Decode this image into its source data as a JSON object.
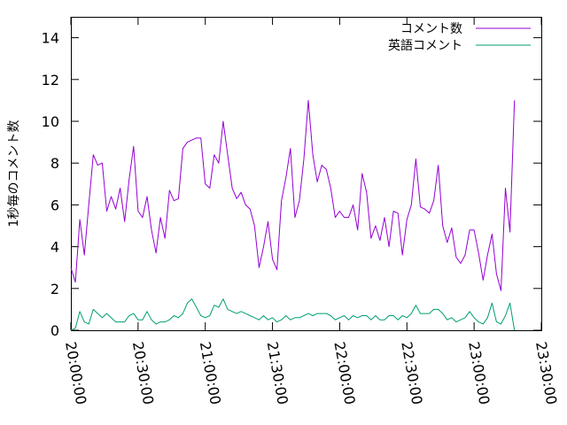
{
  "chart_data": {
    "type": "line",
    "title": "",
    "xlabel": "",
    "ylabel": "1秒毎のコメント数",
    "ylim": [
      0,
      15
    ],
    "yticks": [
      0,
      2,
      4,
      6,
      8,
      10,
      12,
      14
    ],
    "xlim": [
      "20:00:00",
      "23:30:00"
    ],
    "xticks": [
      "20:00:00",
      "20:30:00",
      "21:00:00",
      "21:30:00",
      "22:00:00",
      "22:30:00",
      "23:00:00",
      "23:30:00"
    ],
    "x_step_minutes": 2,
    "grid": false,
    "legend_position": "top-right",
    "series": [
      {
        "name": "コメント数",
        "color": "#9400d3",
        "values": [
          3.0,
          2.3,
          5.3,
          3.6,
          6.0,
          8.4,
          7.9,
          8.0,
          5.7,
          6.4,
          5.8,
          6.8,
          5.2,
          7.2,
          8.8,
          5.7,
          5.4,
          6.4,
          4.8,
          3.7,
          5.4,
          4.4,
          6.7,
          6.2,
          6.3,
          8.7,
          9.0,
          9.1,
          9.2,
          9.2,
          7.0,
          6.8,
          8.4,
          8.0,
          10.0,
          8.4,
          6.8,
          6.3,
          6.6,
          6.0,
          5.8,
          5.0,
          3.0,
          4.0,
          5.2,
          3.4,
          2.9,
          6.2,
          7.3,
          8.7,
          5.4,
          6.2,
          8.2,
          11.0,
          8.4,
          7.1,
          7.9,
          7.7,
          6.8,
          5.4,
          5.7,
          5.4,
          5.4,
          6.0,
          4.8,
          7.5,
          6.6,
          4.4,
          5.0,
          4.3,
          5.4,
          4.0,
          5.7,
          5.6,
          3.6,
          5.3,
          6.0,
          8.2,
          5.9,
          5.8,
          5.6,
          6.2,
          7.9,
          5.0,
          4.2,
          4.9,
          3.5,
          3.2,
          3.6,
          4.8,
          4.8,
          3.7,
          2.4,
          3.6,
          4.6,
          2.7,
          1.9,
          6.8,
          4.7,
          11.0
        ]
      },
      {
        "name": "英語コメント",
        "color": "#009e73",
        "values": [
          0.0,
          0.1,
          0.9,
          0.4,
          0.3,
          1.0,
          0.8,
          0.6,
          0.8,
          0.6,
          0.4,
          0.4,
          0.4,
          0.7,
          0.8,
          0.5,
          0.5,
          0.9,
          0.5,
          0.3,
          0.4,
          0.4,
          0.5,
          0.7,
          0.6,
          0.8,
          1.3,
          1.5,
          1.1,
          0.7,
          0.6,
          0.7,
          1.2,
          1.1,
          1.5,
          1.0,
          0.9,
          0.8,
          0.9,
          0.8,
          0.7,
          0.6,
          0.5,
          0.7,
          0.5,
          0.6,
          0.4,
          0.5,
          0.7,
          0.5,
          0.6,
          0.6,
          0.7,
          0.8,
          0.7,
          0.8,
          0.8,
          0.8,
          0.7,
          0.5,
          0.6,
          0.7,
          0.5,
          0.7,
          0.6,
          0.7,
          0.7,
          0.5,
          0.7,
          0.5,
          0.5,
          0.7,
          0.7,
          0.5,
          0.7,
          0.6,
          0.8,
          1.2,
          0.8,
          0.8,
          0.8,
          1.0,
          1.0,
          0.8,
          0.5,
          0.6,
          0.4,
          0.5,
          0.6,
          0.9,
          0.6,
          0.4,
          0.3,
          0.6,
          1.3,
          0.4,
          0.3,
          0.7,
          1.3,
          0.0
        ]
      }
    ]
  }
}
